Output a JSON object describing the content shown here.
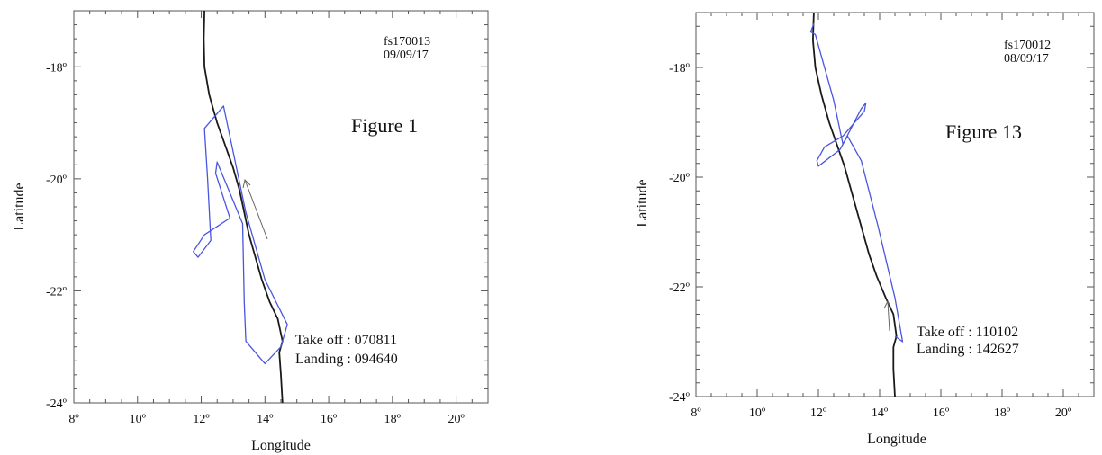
{
  "chart_data": [
    {
      "type": "line",
      "flight_id": "fs170013",
      "date": "09/09/17",
      "figure_label": "Figure 1",
      "takeoff_text": "Take off : 070811",
      "landing_text": "Landing  : 094640",
      "xlabel": "Longitude",
      "ylabel": "Latitude",
      "xlim": [
        8,
        21
      ],
      "ylim": [
        -24,
        -17
      ],
      "x_ticks": [
        8,
        10,
        12,
        14,
        16,
        18,
        20
      ],
      "y_ticks": [
        -18,
        -20,
        -22,
        -24
      ],
      "x_tick_labels": [
        "8º",
        "10º",
        "12º",
        "14º",
        "16º",
        "18º",
        "20º"
      ],
      "y_tick_labels": [
        "-18º",
        "-20º",
        "-22º",
        "-24º"
      ],
      "series": [
        {
          "role": "coastline",
          "color": "#1a1a1a",
          "points": [
            [
              12.1,
              -17.0
            ],
            [
              12.08,
              -17.5
            ],
            [
              12.1,
              -18.0
            ],
            [
              12.25,
              -18.5
            ],
            [
              12.5,
              -19.0
            ],
            [
              12.75,
              -19.4
            ],
            [
              13.0,
              -19.8
            ],
            [
              13.2,
              -20.2
            ],
            [
              13.35,
              -20.6
            ],
            [
              13.5,
              -21.0
            ],
            [
              13.7,
              -21.4
            ],
            [
              13.9,
              -21.8
            ],
            [
              14.15,
              -22.2
            ],
            [
              14.4,
              -22.5
            ],
            [
              14.55,
              -22.9
            ],
            [
              14.45,
              -23.1
            ],
            [
              14.5,
              -23.5
            ],
            [
              14.55,
              -24.0
            ]
          ]
        },
        {
          "role": "flight_track",
          "color": "#4a55e0",
          "points": [
            [
              14.5,
              -23.0
            ],
            [
              14.7,
              -22.6
            ],
            [
              14.0,
              -21.8
            ],
            [
              13.4,
              -20.6
            ],
            [
              12.7,
              -18.7
            ],
            [
              12.1,
              -19.1
            ],
            [
              12.2,
              -20.0
            ],
            [
              12.3,
              -21.1
            ],
            [
              11.9,
              -21.4
            ],
            [
              11.75,
              -21.3
            ],
            [
              12.1,
              -21.0
            ],
            [
              12.9,
              -20.7
            ],
            [
              12.45,
              -19.9
            ],
            [
              12.5,
              -19.7
            ],
            [
              13.3,
              -20.8
            ],
            [
              13.35,
              -22.2
            ],
            [
              13.4,
              -22.9
            ],
            [
              14.0,
              -23.3
            ],
            [
              14.5,
              -23.0
            ]
          ]
        }
      ]
    },
    {
      "type": "line",
      "flight_id": "fs170012",
      "date": "08/09/17",
      "figure_label": "Figure 13",
      "takeoff_text": "Take off : 110102",
      "landing_text": "Landing  : 142627",
      "xlabel": "Longitude",
      "ylabel": "Latitude",
      "xlim": [
        8,
        21
      ],
      "ylim": [
        -24,
        -17
      ],
      "x_ticks": [
        8,
        10,
        12,
        14,
        16,
        18,
        20
      ],
      "y_ticks": [
        -18,
        -20,
        -22,
        -24
      ],
      "x_tick_labels": [
        "8º",
        "10º",
        "12º",
        "14º",
        "16º",
        "18º",
        "20º"
      ],
      "y_tick_labels": [
        "-18º",
        "-20º",
        "-22º",
        "-24º"
      ],
      "series": [
        {
          "role": "coastline",
          "color": "#1a1a1a",
          "points": [
            [
              11.85,
              -17.0
            ],
            [
              11.82,
              -17.5
            ],
            [
              11.9,
              -18.0
            ],
            [
              12.1,
              -18.5
            ],
            [
              12.35,
              -19.0
            ],
            [
              12.6,
              -19.4
            ],
            [
              12.85,
              -19.8
            ],
            [
              13.05,
              -20.2
            ],
            [
              13.25,
              -20.6
            ],
            [
              13.45,
              -21.0
            ],
            [
              13.65,
              -21.4
            ],
            [
              13.9,
              -21.8
            ],
            [
              14.2,
              -22.2
            ],
            [
              14.45,
              -22.5
            ],
            [
              14.55,
              -22.9
            ],
            [
              14.45,
              -23.1
            ],
            [
              14.45,
              -23.5
            ],
            [
              14.5,
              -24.0
            ]
          ]
        },
        {
          "role": "flight_track",
          "color": "#4a55e0",
          "points": [
            [
              14.5,
              -22.9
            ],
            [
              14.75,
              -23.0
            ],
            [
              14.5,
              -22.2
            ],
            [
              13.95,
              -20.9
            ],
            [
              13.4,
              -19.7
            ],
            [
              12.95,
              -19.25
            ],
            [
              12.7,
              -19.5
            ],
            [
              12.0,
              -19.8
            ],
            [
              11.95,
              -19.7
            ],
            [
              12.2,
              -19.45
            ],
            [
              12.8,
              -19.25
            ],
            [
              13.5,
              -18.8
            ],
            [
              13.55,
              -18.65
            ],
            [
              13.4,
              -18.75
            ],
            [
              12.8,
              -19.4
            ],
            [
              12.5,
              -18.6
            ],
            [
              11.9,
              -17.4
            ],
            [
              11.75,
              -17.35
            ],
            [
              11.85,
              -17.2
            ]
          ]
        }
      ]
    }
  ]
}
